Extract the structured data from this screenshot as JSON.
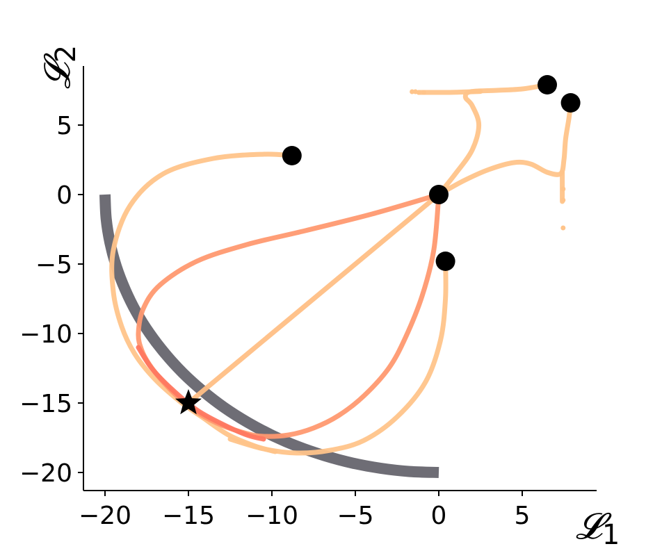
{
  "chart_data": {
    "type": "line",
    "xlabel": "𝓛",
    "xlabel_sub": "1",
    "ylabel": "𝓛",
    "ylabel_sub": "2",
    "xlim": [
      -21.3,
      9.3
    ],
    "ylim": [
      -21.3,
      9.2
    ],
    "xticks": [
      -20,
      -15,
      -10,
      -5,
      0,
      5
    ],
    "xtick_labels": [
      "−20",
      "−15",
      "−10",
      "−5",
      "0",
      "5"
    ],
    "yticks": [
      5,
      0,
      -5,
      -10,
      -15,
      -20
    ],
    "ytick_labels": [
      "5",
      "0",
      "−5",
      "−10",
      "−15",
      "−20"
    ],
    "grid": false,
    "pareto_front": {
      "color": "#6e6d75",
      "points": [
        [
          -20,
          0
        ],
        [
          -19.93,
          -1.74
        ],
        [
          -19.7,
          -3.47
        ],
        [
          -19.32,
          -5.18
        ],
        [
          -18.79,
          -6.84
        ],
        [
          -18.13,
          -8.45
        ],
        [
          -17.32,
          -10
        ],
        [
          -16.38,
          -11.47
        ],
        [
          -15.32,
          -12.86
        ],
        [
          -14.14,
          -14.14
        ],
        [
          -12.86,
          -15.32
        ],
        [
          -11.47,
          -16.38
        ],
        [
          -10,
          -17.32
        ],
        [
          -8.45,
          -18.13
        ],
        [
          -6.84,
          -18.79
        ],
        [
          -5.18,
          -19.32
        ],
        [
          -3.47,
          -19.7
        ],
        [
          -1.74,
          -19.93
        ],
        [
          0,
          -20
        ]
      ]
    },
    "series": [
      {
        "color": "#ffc48a",
        "points": [
          [
            -8.8,
            2.8
          ],
          [
            -10.5,
            2.9
          ],
          [
            -13.5,
            2.6
          ],
          [
            -16.5,
            1.5
          ],
          [
            -18.5,
            -0.8
          ],
          [
            -19.5,
            -4.0
          ],
          [
            -19.5,
            -7.0
          ],
          [
            -19.0,
            -9.5
          ],
          [
            -18.2,
            -11.5
          ],
          [
            -17.0,
            -13.3
          ],
          [
            -15.5,
            -14.9
          ],
          [
            -14.2,
            -16.0
          ],
          [
            -12.6,
            -17.3
          ],
          [
            -11.0,
            -18.1
          ],
          [
            -9.8,
            -18.5
          ]
        ]
      },
      {
        "color": "#ffc48a",
        "points": [
          [
            0.4,
            -4.8
          ],
          [
            0.4,
            -7.5
          ],
          [
            0.1,
            -10.5
          ],
          [
            -0.8,
            -13.5
          ],
          [
            -2.5,
            -16.0
          ],
          [
            -4.5,
            -17.7
          ],
          [
            -6.5,
            -18.4
          ],
          [
            -8.5,
            -18.6
          ],
          [
            -10.5,
            -18.3
          ],
          [
            -12.5,
            -17.6
          ]
        ]
      },
      {
        "color": "#ffbf85",
        "points": [
          [
            0,
            0
          ],
          [
            -3,
            -3
          ],
          [
            -6,
            -6
          ],
          [
            -9,
            -9
          ],
          [
            -12,
            -12
          ],
          [
            -15,
            -15
          ]
        ]
      },
      {
        "color": "#ff9970",
        "points": [
          [
            0,
            0
          ],
          [
            -4,
            -1.4
          ],
          [
            -8,
            -2.6
          ],
          [
            -11.5,
            -3.6
          ],
          [
            -14.5,
            -4.8
          ],
          [
            -16.7,
            -6.5
          ],
          [
            -17.7,
            -8.2
          ],
          [
            -18,
            -10
          ],
          [
            -17.8,
            -11.2
          ],
          [
            -17.3,
            -12.3
          ],
          [
            -16.5,
            -13.5
          ],
          [
            -15.5,
            -14.7
          ],
          [
            -14.3,
            -15.8
          ],
          [
            -13.0,
            -16.6
          ],
          [
            -11.5,
            -17.2
          ],
          [
            -10.5,
            -17.4
          ],
          [
            -9.0,
            -17.3
          ],
          [
            -7.5,
            -16.8
          ],
          [
            -6.0,
            -15.9
          ],
          [
            -4.5,
            -14.5
          ],
          [
            -3.0,
            -12.5
          ],
          [
            -2.0,
            -10.3
          ],
          [
            -1.0,
            -7.3
          ],
          [
            -0.3,
            -4.0
          ],
          [
            0,
            0
          ]
        ]
      },
      {
        "color": "#ff7760",
        "points": [
          [
            -18.0,
            -11.0
          ],
          [
            -17.2,
            -12.5
          ],
          [
            -16.0,
            -14.0
          ],
          [
            -14.5,
            -15.5
          ],
          [
            -13.0,
            -16.5
          ],
          [
            -11.5,
            -17.3
          ],
          [
            -10.5,
            -17.6
          ]
        ]
      },
      {
        "color": "#ffc48a",
        "points": [
          [
            0,
            0
          ],
          [
            1.0,
            1.5
          ],
          [
            2.0,
            3.2
          ],
          [
            2.4,
            5.0
          ],
          [
            2.0,
            6.4
          ],
          [
            1.6,
            7.0
          ],
          [
            1.9,
            7.4
          ],
          [
            3.5,
            7.5
          ],
          [
            5.0,
            7.6
          ],
          [
            6.5,
            7.9
          ]
        ]
      },
      {
        "color": "#ffc48a",
        "points": [
          [
            -1.2,
            7.35
          ],
          [
            -0.4,
            7.35
          ],
          [
            0.5,
            7.35
          ],
          [
            1.5,
            7.38
          ],
          [
            2.5,
            7.42
          ]
        ]
      },
      {
        "color": "#ffc48a",
        "points": [
          [
            0,
            0
          ],
          [
            1.5,
            1.0
          ],
          [
            3.0,
            1.8
          ],
          [
            4.5,
            2.3
          ],
          [
            5.5,
            2.2
          ],
          [
            6.5,
            1.6
          ],
          [
            7.3,
            1.5
          ],
          [
            7.5,
            2.5
          ],
          [
            7.6,
            4.0
          ],
          [
            7.8,
            5.5
          ],
          [
            7.9,
            6.6
          ]
        ]
      },
      {
        "color": "#ffc48a",
        "points": [
          [
            7.4,
            1.6
          ],
          [
            7.4,
            0.5
          ],
          [
            7.4,
            -0.5
          ]
        ]
      }
    ],
    "start_points": [
      [
        -8.8,
        2.8
      ],
      [
        0.4,
        -4.8
      ],
      [
        0,
        0
      ],
      [
        6.5,
        7.9
      ],
      [
        7.9,
        6.6
      ]
    ],
    "target_point": [
      -15,
      -15
    ],
    "stray_points": [
      [
        -1.6,
        7.4
      ],
      [
        -1.4,
        7.4
      ],
      [
        -1.2,
        7.35
      ],
      [
        -0.9,
        7.35
      ],
      [
        7.45,
        -2.4
      ],
      [
        7.45,
        -0.4
      ],
      [
        7.45,
        0.4
      ]
    ]
  }
}
